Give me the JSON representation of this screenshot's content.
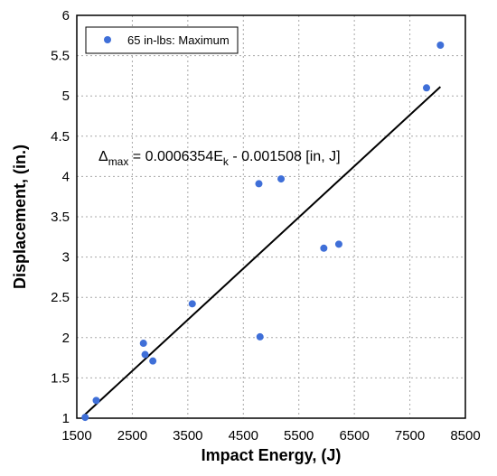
{
  "chart_data": {
    "type": "scatter",
    "xlabel": "Impact Energy, (J)",
    "ylabel": "Displacement, (in.)",
    "xlim": [
      1500,
      8500
    ],
    "ylim": [
      1,
      6
    ],
    "xticks": [
      1500,
      2500,
      3500,
      4500,
      5500,
      6500,
      7500,
      8500
    ],
    "yticks": [
      1,
      1.5,
      2,
      2.5,
      3,
      3.5,
      4,
      4.5,
      5,
      5.5,
      6
    ],
    "xtick_labels": [
      "1500",
      "2500",
      "3500",
      "4500",
      "5500",
      "6500",
      "7500",
      "8500"
    ],
    "ytick_labels": [
      "1",
      "1.5",
      "2",
      "2.5",
      "3",
      "3.5",
      "4",
      "4.5",
      "5",
      "5.5",
      "6"
    ],
    "grid": true,
    "legend_position": "top-left",
    "series": [
      {
        "name": "65 in-lbs: Maximum",
        "color": "#3f6fd8",
        "points": [
          {
            "x": 1650,
            "y": 1.01
          },
          {
            "x": 1850,
            "y": 1.22
          },
          {
            "x": 2700,
            "y": 1.93
          },
          {
            "x": 2730,
            "y": 1.79
          },
          {
            "x": 2870,
            "y": 1.71
          },
          {
            "x": 3580,
            "y": 2.42
          },
          {
            "x": 4780,
            "y": 3.91
          },
          {
            "x": 4800,
            "y": 2.01
          },
          {
            "x": 5180,
            "y": 3.97
          },
          {
            "x": 5950,
            "y": 3.11
          },
          {
            "x": 6220,
            "y": 3.16
          },
          {
            "x": 7800,
            "y": 5.1
          },
          {
            "x": 8050,
            "y": 5.63
          }
        ]
      }
    ],
    "trendline": {
      "slope": 0.0006354,
      "intercept": -0.001508,
      "x_range": [
        1620,
        8050
      ],
      "color": "#000000"
    },
    "annotation": {
      "delta": "Δ",
      "sub1": "max",
      "mid": " = 0.0006354E",
      "sub2": "k",
      "tail": " - 0.001508 [in, J]"
    }
  }
}
